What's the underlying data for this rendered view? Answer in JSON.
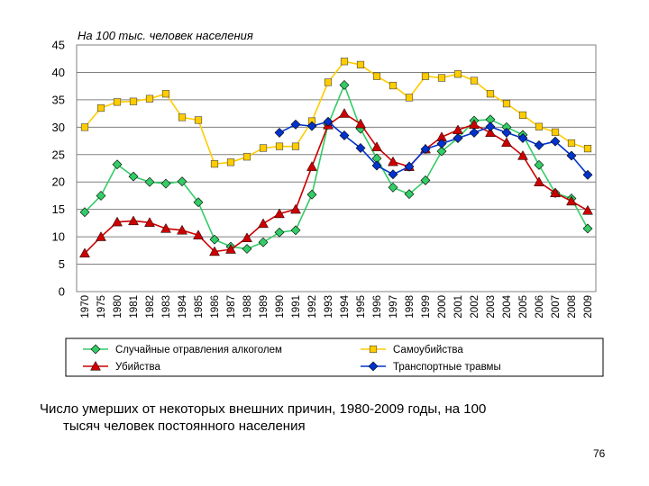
{
  "chart_data": {
    "type": "line",
    "ylabel": "На 100 тыс. человек населения",
    "ylim": [
      0,
      45
    ],
    "yticks": [
      "0",
      "5",
      "10",
      "15",
      "20",
      "25",
      "30",
      "35",
      "40",
      "45"
    ],
    "x": [
      "1970",
      "1975",
      "1980",
      "1981",
      "1982",
      "1983",
      "1984",
      "1985",
      "1986",
      "1987",
      "1988",
      "1989",
      "1990",
      "1991",
      "1992",
      "1993",
      "1994",
      "1995",
      "1996",
      "1997",
      "1998",
      "1999",
      "2000",
      "2001",
      "2002",
      "2003",
      "2004",
      "2005",
      "2006",
      "2007",
      "2008",
      "2009"
    ],
    "grid": true,
    "legend_position": "bottom",
    "series": [
      {
        "name": "Случайные отравления алкоголем",
        "color": "#33cc66",
        "marker": "diamond",
        "values": [
          14.5,
          17.5,
          23.2,
          21.0,
          20.0,
          19.7,
          20.1,
          16.3,
          9.5,
          8.2,
          7.8,
          9.0,
          10.8,
          11.2,
          17.7,
          30.5,
          37.7,
          29.7,
          24.3,
          19.0,
          17.8,
          20.3,
          25.6,
          28.0,
          31.2,
          31.4,
          30.0,
          28.6,
          23.1,
          18.0,
          17.0,
          11.5
        ]
      },
      {
        "name": "Самоубийства",
        "color": "#ffcc00",
        "marker": "square",
        "values": [
          30.0,
          33.5,
          34.6,
          34.7,
          35.2,
          36.1,
          31.8,
          31.3,
          23.3,
          23.6,
          24.6,
          26.2,
          26.5,
          26.5,
          31.1,
          38.2,
          42.0,
          41.4,
          39.3,
          37.6,
          35.4,
          39.3,
          39.0,
          39.7,
          38.5,
          36.1,
          34.3,
          32.2,
          30.1,
          29.1,
          27.1,
          26.1
        ]
      },
      {
        "name": "Убийства",
        "color": "#cc0000",
        "marker": "triangle",
        "values": [
          7.0,
          10.0,
          12.7,
          12.9,
          12.6,
          11.5,
          11.2,
          10.3,
          7.3,
          7.7,
          9.8,
          12.4,
          14.2,
          15.0,
          22.8,
          30.4,
          32.5,
          30.6,
          26.4,
          23.7,
          22.8,
          26.0,
          28.2,
          29.5,
          30.5,
          29.0,
          27.2,
          24.8,
          20.0,
          18.0,
          16.5,
          14.8
        ]
      },
      {
        "name": "Транспортные травмы",
        "color": "#0033cc",
        "marker": "diamond",
        "values": [
          null,
          null,
          null,
          null,
          null,
          null,
          null,
          null,
          null,
          null,
          null,
          null,
          29.0,
          30.5,
          30.2,
          31.0,
          28.5,
          26.2,
          23.0,
          21.4,
          22.8,
          26.0,
          27.0,
          28.0,
          29.0,
          30.1,
          29.0,
          28.0,
          26.7,
          27.4,
          24.8,
          21.3
        ]
      }
    ]
  },
  "caption": {
    "line1": "Число умерших от некоторых внешних причин, 1980-2009 годы, на 100",
    "line2": "тысяч человек постоянного населения"
  },
  "page_number": "76"
}
